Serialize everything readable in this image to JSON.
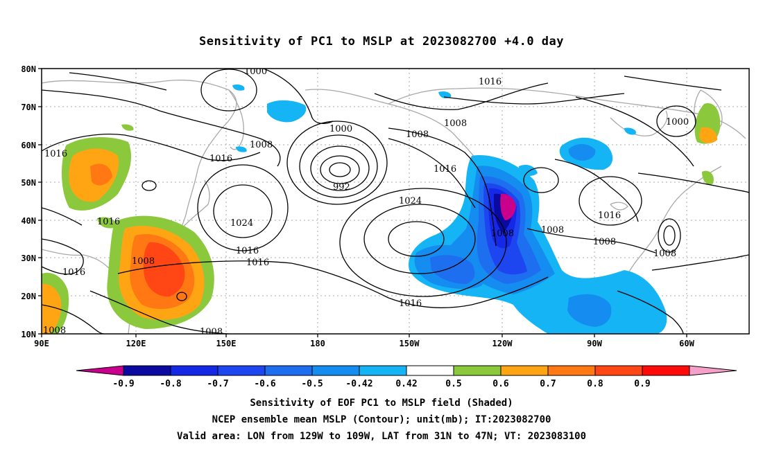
{
  "title": "Sensitivity of PC1 to MSLP at 2023082700 +4.0 day",
  "axes": {
    "y_ticks": [
      "80N",
      "70N",
      "60N",
      "50N",
      "40N",
      "30N",
      "20N",
      "10N"
    ],
    "x_ticks": [
      "90E",
      "120E",
      "150E",
      "180",
      "150W",
      "120W",
      "90W",
      "60W"
    ]
  },
  "contour_labels": [
    "1000",
    "1016",
    "1008",
    "1016",
    "1000",
    "1008",
    "1008",
    "1000",
    "992",
    "1016",
    "1016",
    "1024",
    "1024",
    "1016",
    "1016",
    "1008",
    "1008",
    "1016",
    "1008",
    "1008",
    "1008",
    "1016",
    "1016",
    "1008",
    "1008"
  ],
  "colorbar": {
    "labels": [
      "-0.9",
      "-0.8",
      "-0.7",
      "-0.6",
      "-0.5",
      "-0.42",
      "0.42",
      "0.5",
      "0.6",
      "0.7",
      "0.8",
      "0.9"
    ],
    "colors": {
      "below_min": "#c8008c",
      "bins": [
        "#0a0aa0",
        "#1428e6",
        "#1e46f0",
        "#1e6ef0",
        "#148cf0",
        "#14b4f5",
        "#ffffff",
        "#8cc83c",
        "#ffa514",
        "#ff7814",
        "#ff4614",
        "#ff0a0a"
      ],
      "above_max": "#f5a0c8"
    }
  },
  "captions": {
    "line1": "Sensitivity of EOF PC1 to MSLP field (Shaded)",
    "line2": "NCEP ensemble mean MSLP (Contour); unit(mb); IT:2023082700",
    "line3": "Valid area: LON from 129W to 109W, LAT from 31N to 47N; VT: 2023083100"
  }
}
